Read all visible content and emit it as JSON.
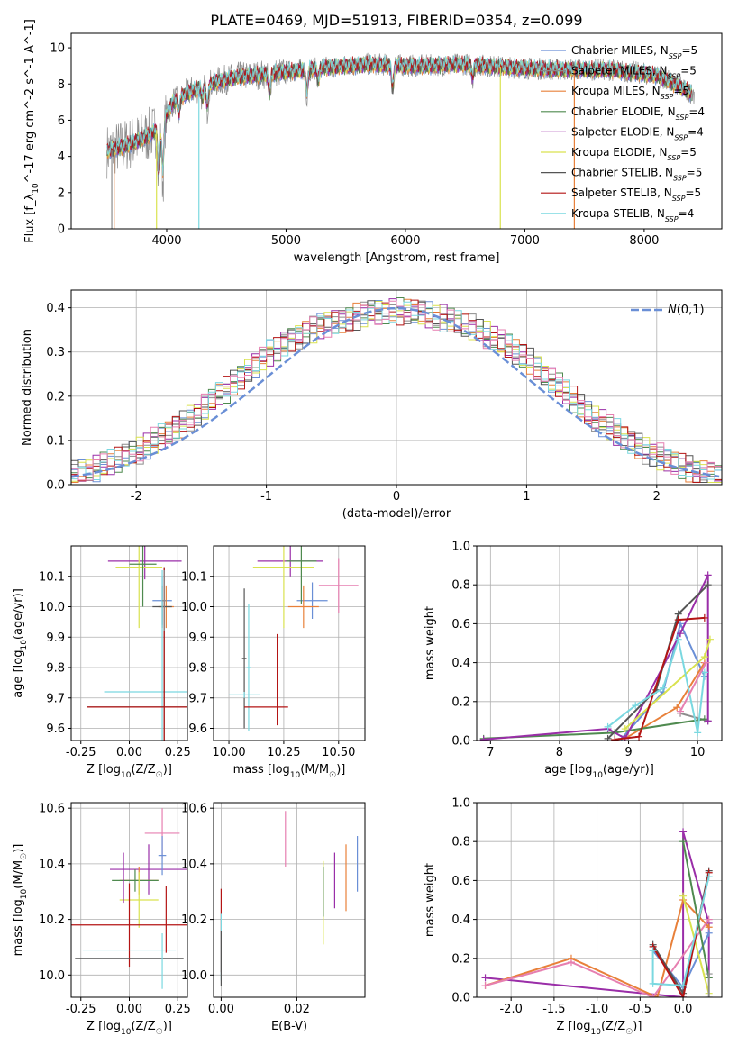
{
  "title": "PLATE=0469, MJD=51913, FIBERID=0354, z=0.099",
  "colors": {
    "chabrier_miles": "#6a8fd6",
    "salpeter_miles": "#8c8c8c",
    "kroupa_miles": "#e8803a",
    "chabrier_elodie": "#4f8a4f",
    "salpeter_elodie": "#9a2ea8",
    "kroupa_elodie": "#d9e24f",
    "chabrier_stelib": "#555555",
    "salpeter_stelib": "#b41414",
    "kroupa_stelib": "#7ad8e0",
    "pink": "#e67fb0",
    "normal_curve": "#6a8fd6",
    "grid": "#b0b0b0"
  },
  "chart_data": [
    {
      "type": "line",
      "id": "spectrum",
      "xlabel": "wavelength [Angstrom, rest frame]",
      "ylabel": "Flux [f_λ10^-17 erg cm^-2 s^-1 A^-1]",
      "xlim": [
        3200,
        8650
      ],
      "ylim": [
        0,
        10.8
      ],
      "xticks": [
        4000,
        5000,
        6000,
        7000,
        8000
      ],
      "yticks": [
        0,
        2,
        4,
        6,
        8,
        10
      ],
      "grid": false,
      "legend_position": "right",
      "legend": [
        {
          "name": "Chabrier MILES",
          "nssp": "5",
          "color_key": "chabrier_miles"
        },
        {
          "name": "Salpeter MILES",
          "nssp": "5",
          "color_key": "salpeter_miles"
        },
        {
          "name": "Kroupa MILES",
          "nssp": "5",
          "color_key": "kroupa_miles"
        },
        {
          "name": "Chabrier ELODIE",
          "nssp": "4",
          "color_key": "chabrier_elodie"
        },
        {
          "name": "Salpeter ELODIE",
          "nssp": "4",
          "color_key": "salpeter_elodie"
        },
        {
          "name": "Kroupa ELODIE",
          "nssp": "5",
          "color_key": "kroupa_elodie"
        },
        {
          "name": "Chabrier STELIB",
          "nssp": "5",
          "color_key": "chabrier_stelib"
        },
        {
          "name": "Salpeter STELIB",
          "nssp": "5",
          "color_key": "salpeter_stelib"
        },
        {
          "name": "Kroupa STELIB",
          "nssp": "4",
          "color_key": "kroupa_stelib"
        }
      ],
      "continuum": [
        [
          3500,
          4.3
        ],
        [
          3650,
          4.6
        ],
        [
          3800,
          5.0
        ],
        [
          3950,
          5.6
        ],
        [
          4050,
          7.0
        ],
        [
          4200,
          7.6
        ],
        [
          4400,
          8.1
        ],
        [
          4600,
          8.4
        ],
        [
          4900,
          8.6
        ],
        [
          5300,
          8.9
        ],
        [
          5700,
          9.1
        ],
        [
          6100,
          9.0
        ],
        [
          6500,
          9.1
        ],
        [
          6900,
          8.9
        ],
        [
          7300,
          8.8
        ],
        [
          7700,
          8.8
        ],
        [
          8100,
          8.5
        ],
        [
          8400,
          7.5
        ]
      ],
      "features": [
        [
          3934,
          3.0
        ],
        [
          3968,
          3.2
        ],
        [
          4102,
          1.0
        ],
        [
          4300,
          0.8
        ],
        [
          4340,
          1.4
        ],
        [
          4861,
          1.3
        ],
        [
          5175,
          1.5
        ],
        [
          5270,
          0.8
        ],
        [
          5893,
          1.6
        ],
        [
          6563,
          0.8
        ]
      ],
      "dropouts": [
        {
          "x": 3540,
          "color_key": "salpeter_miles"
        },
        {
          "x": 3560,
          "color_key": "kroupa_miles"
        },
        {
          "x": 3915,
          "color_key": "kroupa_elodie"
        },
        {
          "x": 4270,
          "color_key": "kroupa_stelib"
        },
        {
          "x": 6795,
          "color_key": "kroupa_elodie"
        },
        {
          "x": 7415,
          "color_key": "kroupa_miles"
        }
      ]
    },
    {
      "type": "area",
      "id": "residual_histogram",
      "xlabel": "(data-model)/error",
      "ylabel": "Normed distribution",
      "xlim": [
        -2.5,
        2.5
      ],
      "ylim": [
        0,
        0.44
      ],
      "xticks": [
        -2,
        -1,
        0,
        1,
        2
      ],
      "yticks": [
        0.0,
        0.1,
        0.2,
        0.3,
        0.4
      ],
      "grid": true,
      "legend_position": "top-right",
      "legend_label": "N(0,1)",
      "bin_width": 0.1,
      "reference_values": [
        0.024,
        0.028,
        0.031,
        0.036,
        0.044,
        0.049,
        0.055,
        0.064,
        0.072,
        0.077,
        0.088,
        0.098,
        0.108,
        0.116,
        0.129,
        0.137,
        0.152,
        0.163,
        0.176,
        0.19,
        0.206,
        0.216,
        0.233,
        0.246,
        0.262,
        0.272,
        0.286,
        0.3,
        0.309,
        0.322,
        0.33,
        0.337,
        0.347,
        0.352,
        0.359,
        0.365,
        0.37,
        0.373,
        0.376,
        0.381,
        0.385,
        0.39,
        0.39,
        0.392,
        0.395,
        0.392,
        0.391,
        0.39,
        0.388,
        0.382,
        0.378,
        0.376,
        0.371,
        0.365,
        0.36,
        0.354,
        0.346,
        0.338,
        0.33,
        0.321,
        0.312,
        0.297,
        0.288,
        0.277,
        0.262,
        0.249,
        0.236,
        0.222,
        0.207,
        0.191,
        0.178,
        0.162,
        0.149,
        0.14,
        0.128,
        0.118,
        0.105,
        0.096,
        0.088,
        0.078,
        0.069,
        0.063,
        0.056,
        0.05,
        0.043,
        0.038,
        0.032,
        0.03,
        0.027,
        0.022
      ]
    },
    {
      "type": "scatter",
      "id": "age_vs_Z",
      "xlabel": "Z [log10(Z/Z☉)]",
      "ylabel": "age  [log10(age/yr)]",
      "xlim": [
        -0.3,
        0.3
      ],
      "ylim": [
        9.56,
        10.2
      ],
      "xticks": [
        -0.25,
        0.0,
        0.25
      ],
      "yticks": [
        9.6,
        9.7,
        9.8,
        9.9,
        10.0,
        10.1
      ],
      "grid": true,
      "points": [
        {
          "x": 0.17,
          "y": 10.02,
          "xerr": 0.05,
          "yerr": 0.08,
          "color_key": "chabrier_miles"
        },
        {
          "x": 0.19,
          "y": 10.0,
          "xerr": 0.04,
          "yerr": 0.07,
          "color_key": "kroupa_miles"
        },
        {
          "x": 0.08,
          "y": 10.15,
          "xerr": 0.19,
          "yerr": 0.06,
          "color_key": "salpeter_elodie"
        },
        {
          "x": 0.05,
          "y": 10.13,
          "xerr": 0.12,
          "yerr": 0.2,
          "color_key": "kroupa_elodie"
        },
        {
          "x": 0.07,
          "y": 10.14,
          "xerr": 0.07,
          "yerr": 0.14,
          "color_key": "chabrier_elodie"
        },
        {
          "x": 0.17,
          "y": 10.0,
          "xerr": 0.05,
          "yerr": 0.07,
          "color_key": "chabrier_stelib"
        },
        {
          "x": 0.17,
          "y": 9.72,
          "xerr": 0.3,
          "yerr": 0.4,
          "color_key": "kroupa_stelib"
        },
        {
          "x": 0.18,
          "y": 9.67,
          "xerr": 0.4,
          "yerr": 0.46,
          "color_key": "chabrier_stelib"
        },
        {
          "x": 0.18,
          "y": 9.67,
          "xerr": 0.4,
          "yerr": 0.46,
          "color_key": "salpeter_stelib"
        },
        {
          "x": 0.18,
          "y": 10.02,
          "xerr": 0.01,
          "yerr": 0.1,
          "color_key": "salpeter_miles"
        }
      ]
    },
    {
      "type": "scatter",
      "id": "age_vs_mass",
      "xlabel": "mass [log10(M/M☉)]",
      "ylabel": "",
      "xlim": [
        9.93,
        10.62
      ],
      "ylim": [
        9.56,
        10.2
      ],
      "xticks": [
        10.0,
        10.25,
        10.5
      ],
      "yticks": [
        9.6,
        9.7,
        9.8,
        9.9,
        10.0,
        10.1
      ],
      "grid": true,
      "points": [
        {
          "x": 10.38,
          "y": 10.02,
          "xerr": 0.07,
          "yerr": 0.06,
          "color_key": "chabrier_miles"
        },
        {
          "x": 10.34,
          "y": 10.0,
          "xerr": 0.07,
          "yerr": 0.07,
          "color_key": "kroupa_miles"
        },
        {
          "x": 10.5,
          "y": 10.07,
          "xerr": 0.09,
          "yerr": 0.09,
          "color_key": "pink"
        },
        {
          "x": 10.28,
          "y": 10.15,
          "xerr": 0.15,
          "yerr": 0.05,
          "color_key": "salpeter_elodie"
        },
        {
          "x": 10.25,
          "y": 10.13,
          "xerr": 0.14,
          "yerr": 0.2,
          "color_key": "kroupa_elodie"
        },
        {
          "x": 10.33,
          "y": 10.15,
          "xerr": 0.07,
          "yerr": 0.14,
          "color_key": "chabrier_elodie"
        },
        {
          "x": 10.07,
          "y": 9.83,
          "xerr": 0.01,
          "yerr": 0.23,
          "color_key": "chabrier_stelib"
        },
        {
          "x": 10.09,
          "y": 9.8,
          "xerr": 0.01,
          "yerr": 0.21,
          "color_key": "kroupa_stelib"
        },
        {
          "x": 10.07,
          "y": 9.71,
          "xerr": 0.07,
          "yerr": 0.01,
          "color_key": "kroupa_stelib"
        },
        {
          "x": 10.22,
          "y": 9.76,
          "xerr": 0.0,
          "yerr": 0.15,
          "color_key": "salpeter_stelib"
        },
        {
          "x": 10.17,
          "y": 9.67,
          "xerr": 0.1,
          "yerr": 0.0,
          "color_key": "salpeter_stelib"
        }
      ]
    },
    {
      "type": "line",
      "id": "massweight_vs_age",
      "xlabel": "age  [log10(age/yr)]",
      "ylabel": "mass weight",
      "xlim": [
        6.8,
        10.35
      ],
      "ylim": [
        0,
        1.0
      ],
      "xticks": [
        7,
        8,
        9,
        10
      ],
      "yticks": [
        0.0,
        0.2,
        0.4,
        0.6,
        0.8,
        1.0
      ],
      "grid": true,
      "series": [
        {
          "color_key": "chabrier_miles",
          "x": [
            8.9,
            9.5,
            9.75,
            10.1
          ],
          "y": [
            0.01,
            0.25,
            0.6,
            0.33
          ]
        },
        {
          "color_key": "salpeter_miles",
          "x": [
            9.75,
            10.15
          ],
          "y": [
            0.14,
            0.1
          ]
        },
        {
          "color_key": "kroupa_miles",
          "x": [
            8.95,
            9.7,
            10.1
          ],
          "y": [
            0.01,
            0.17,
            0.4
          ]
        },
        {
          "color_key": "chabrier_elodie",
          "x": [
            6.9,
            8.8,
            10.1
          ],
          "y": [
            0.01,
            0.04,
            0.11
          ]
        },
        {
          "color_key": "salpeter_elodie",
          "x": [
            6.9,
            8.7,
            8.95,
            9.75,
            10.15,
            10.15
          ],
          "y": [
            0.005,
            0.06,
            0.01,
            0.55,
            0.85,
            0.1
          ]
        },
        {
          "color_key": "kroupa_elodie",
          "x": [
            8.95,
            10.1,
            10.18
          ],
          "y": [
            0.06,
            0.43,
            0.52
          ]
        },
        {
          "color_key": "chabrier_stelib",
          "x": [
            8.7,
            9.4,
            9.72,
            10.15
          ],
          "y": [
            0.01,
            0.26,
            0.65,
            0.8
          ]
        },
        {
          "color_key": "salpeter_stelib",
          "x": [
            8.8,
            9.15,
            9.72,
            10.1
          ],
          "y": [
            0.005,
            0.02,
            0.62,
            0.63
          ]
        },
        {
          "color_key": "kroupa_stelib",
          "x": [
            8.7,
            9.1,
            9.5,
            9.72,
            10.0,
            10.1
          ],
          "y": [
            0.07,
            0.18,
            0.27,
            0.52,
            0.04,
            0.35
          ]
        },
        {
          "color_key": "pink",
          "x": [
            9.75,
            10.12
          ],
          "y": [
            0.15,
            0.4
          ]
        }
      ]
    },
    {
      "type": "scatter",
      "id": "mass_vs_Z",
      "xlabel": "Z [log10(Z/Z☉)]",
      "ylabel": "mass [log10(M/M☉)]",
      "xlim": [
        -0.3,
        0.3
      ],
      "ylim": [
        9.92,
        10.62
      ],
      "xticks": [
        -0.25,
        0.0,
        0.25
      ],
      "yticks": [
        10.0,
        10.2,
        10.4,
        10.6
      ],
      "grid": true,
      "points": [
        {
          "x": 0.17,
          "y": 10.51,
          "xerr": 0.09,
          "yerr": 0.09,
          "color_key": "pink"
        },
        {
          "x": 0.1,
          "y": 10.38,
          "xerr": 0.2,
          "yerr": 0.09,
          "color_key": "salpeter_elodie"
        },
        {
          "x": 0.05,
          "y": 10.34,
          "xerr": 0.1,
          "yerr": 0.05,
          "color_key": "kroupa_miles"
        },
        {
          "x": 0.03,
          "y": 10.34,
          "xerr": 0.12,
          "yerr": 0.04,
          "color_key": "chabrier_elodie"
        },
        {
          "x": 0.05,
          "y": 10.27,
          "xerr": 0.1,
          "yerr": 0.1,
          "color_key": "kroupa_elodie"
        },
        {
          "x": 0.17,
          "y": 10.43,
          "xerr": 0.02,
          "yerr": 0.07,
          "color_key": "chabrier_miles"
        },
        {
          "x": -0.03,
          "y": 10.35,
          "xerr": 0.0,
          "yerr": 0.09,
          "color_key": "salpeter_elodie"
        },
        {
          "x": 0.0,
          "y": 10.18,
          "xerr": 0.3,
          "yerr": 0.15,
          "color_key": "salpeter_stelib"
        },
        {
          "x": 0.0,
          "y": 10.09,
          "xerr": 0.24,
          "yerr": 0.0,
          "color_key": "kroupa_stelib"
        },
        {
          "x": 0.0,
          "y": 10.06,
          "xerr": 0.28,
          "yerr": 0.0,
          "color_key": "chabrier_stelib"
        },
        {
          "x": 0.19,
          "y": 10.2,
          "xerr": 0.0,
          "yerr": 0.12,
          "color_key": "salpeter_stelib"
        },
        {
          "x": 0.17,
          "y": 10.05,
          "xerr": 0.0,
          "yerr": 0.1,
          "color_key": "kroupa_stelib"
        }
      ]
    },
    {
      "type": "scatter",
      "id": "mass_vs_ebv",
      "xlabel": "E(B-V)",
      "ylabel": "",
      "xlim": [
        -0.002,
        0.038
      ],
      "ylim": [
        9.92,
        10.62
      ],
      "xticks": [
        0.0,
        0.02
      ],
      "yticks": [
        10.0,
        10.2,
        10.4,
        10.6
      ],
      "grid": true,
      "points": [
        {
          "x": 0.0,
          "y": 10.16,
          "yerr": 0.15,
          "color_key": "salpeter_stelib"
        },
        {
          "x": 0.0,
          "y": 10.1,
          "yerr": 0.12,
          "color_key": "kroupa_stelib"
        },
        {
          "x": 0.0,
          "y": 10.06,
          "yerr": 0.1,
          "color_key": "chabrier_stelib"
        },
        {
          "x": 0.017,
          "y": 10.49,
          "yerr": 0.1,
          "color_key": "pink"
        },
        {
          "x": 0.027,
          "y": 10.26,
          "yerr": 0.15,
          "color_key": "kroupa_elodie"
        },
        {
          "x": 0.027,
          "y": 10.3,
          "yerr": 0.09,
          "color_key": "chabrier_elodie"
        },
        {
          "x": 0.03,
          "y": 10.34,
          "yerr": 0.1,
          "color_key": "salpeter_elodie"
        },
        {
          "x": 0.033,
          "y": 10.35,
          "yerr": 0.12,
          "color_key": "kroupa_miles"
        },
        {
          "x": 0.036,
          "y": 10.4,
          "yerr": 0.1,
          "color_key": "chabrier_miles"
        }
      ]
    },
    {
      "type": "line",
      "id": "massweight_vs_Z",
      "xlabel": "Z [log10(Z/Z☉)]",
      "ylabel": "mass weight",
      "xlim": [
        -2.4,
        0.45
      ],
      "ylim": [
        0,
        1.0
      ],
      "xticks": [
        -2.0,
        -1.5,
        -1.0,
        -0.5,
        0.0
      ],
      "yticks": [
        0.0,
        0.2,
        0.4,
        0.6,
        0.8,
        1.0
      ],
      "grid": true,
      "series": [
        {
          "color_key": "salpeter_elodie",
          "x": [
            -2.3,
            0.0,
            0.0,
            0.3,
            0.3
          ],
          "y": [
            0.1,
            0.0,
            0.85,
            0.38,
            0.1
          ]
        },
        {
          "color_key": "kroupa_miles",
          "x": [
            -2.3,
            -1.3,
            -0.3,
            0.0,
            0.3
          ],
          "y": [
            0.06,
            0.2,
            0.0,
            0.5,
            0.36
          ]
        },
        {
          "color_key": "pink",
          "x": [
            -2.3,
            -1.3,
            -0.35,
            0.3
          ],
          "y": [
            0.06,
            0.18,
            0.0,
            0.4
          ]
        },
        {
          "color_key": "chabrier_miles",
          "x": [
            -0.35,
            0.0,
            0.3
          ],
          "y": [
            0.24,
            0.05,
            0.33
          ]
        },
        {
          "color_key": "kroupa_elodie",
          "x": [
            0.0,
            0.3
          ],
          "y": [
            0.52,
            0.02
          ]
        },
        {
          "color_key": "chabrier_stelib",
          "x": [
            -0.35,
            0.0,
            0.3
          ],
          "y": [
            0.27,
            0.02,
            0.65
          ]
        },
        {
          "color_key": "salpeter_stelib",
          "x": [
            -0.35,
            0.0,
            0.3
          ],
          "y": [
            0.26,
            0.0,
            0.64
          ]
        },
        {
          "color_key": "kroupa_stelib",
          "x": [
            -0.35,
            -0.35,
            0.0,
            0.3
          ],
          "y": [
            0.24,
            0.07,
            0.06,
            0.62
          ]
        },
        {
          "color_key": "chabrier_elodie",
          "x": [
            0.0,
            0.3
          ],
          "y": [
            0.8,
            0.1
          ]
        },
        {
          "color_key": "salpeter_miles",
          "x": [
            0.3,
            0.3
          ],
          "y": [
            0.0,
            0.12
          ]
        }
      ]
    }
  ]
}
